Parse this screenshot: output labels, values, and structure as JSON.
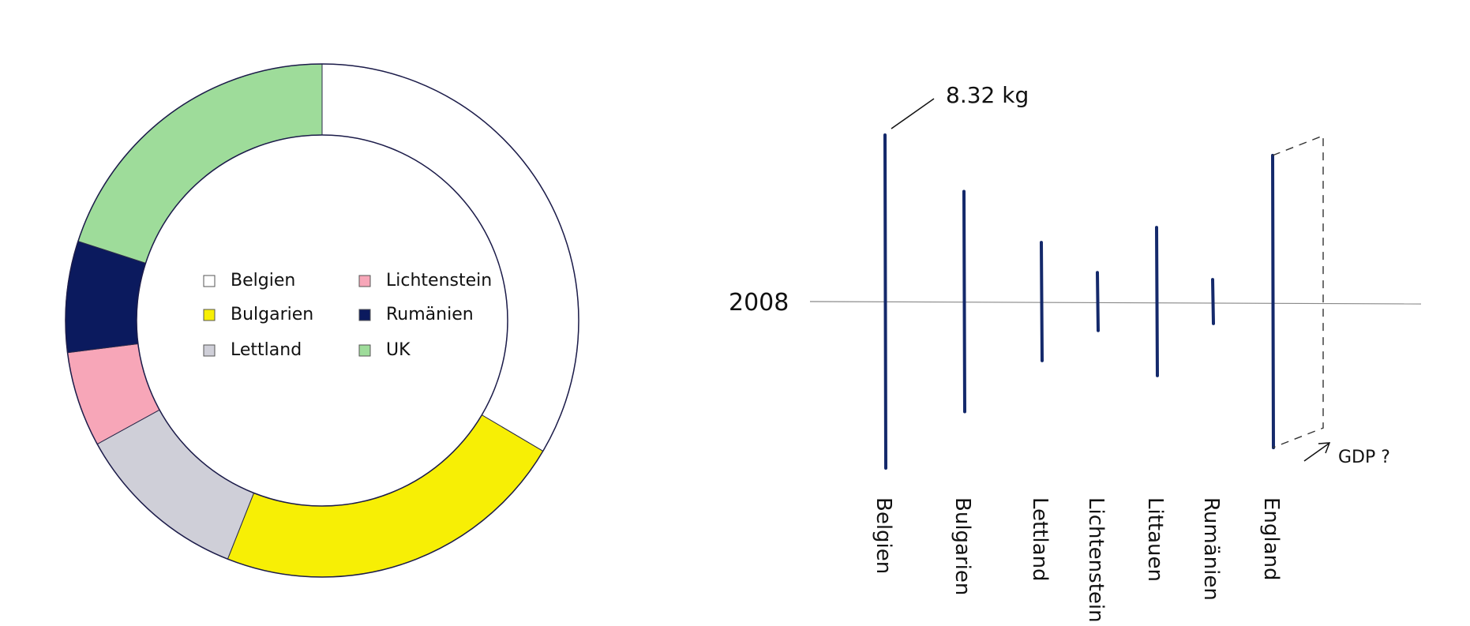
{
  "chart_data": [
    {
      "type": "pie",
      "variant": "donut",
      "hand_drawn": true,
      "slices": [
        {
          "label": "Belgien",
          "value": 33.5,
          "color": "#ffffff"
        },
        {
          "label": "Bulgarien",
          "value": 22.5,
          "color": "#f7ef05"
        },
        {
          "label": "Lettland",
          "value": 11,
          "color": "#cfcfd8"
        },
        {
          "label": "Lichtenstein",
          "value": 6,
          "color": "#f7a6b8"
        },
        {
          "label": "Rumänien",
          "value": 7,
          "color": "#0b1a5e"
        },
        {
          "label": "UK",
          "value": 20,
          "color": "#9edc9a"
        }
      ],
      "legend": {
        "placement": "center",
        "items": [
          {
            "label": "Belgien",
            "color": "#ffffff"
          },
          {
            "label": "Bulgarien",
            "color": "#f7ef05"
          },
          {
            "label": "Lettland",
            "color": "#cfcfd8"
          },
          {
            "label": "Lichtenstein",
            "color": "#f7a6b8"
          },
          {
            "label": "Rumänien",
            "color": "#0b1a5e"
          },
          {
            "label": "UK",
            "color": "#9edc9a"
          }
        ]
      }
    },
    {
      "type": "bar",
      "variant": "centered-vertical-lines",
      "hand_drawn": true,
      "baseline_label": "2008",
      "categories": [
        "Belgien",
        "Bulgarien",
        "Lettland",
        "Lichtenstein",
        "Littauen",
        "Rumänien",
        "England"
      ],
      "values": [
        8.32,
        5.5,
        2.95,
        1.45,
        3.7,
        1.1,
        7.3
      ],
      "annotation": {
        "text": "8.32 kg",
        "category": "Belgien"
      },
      "extra_annotation": {
        "text": "GDP ?",
        "category": "England"
      },
      "bar_color": "#14296b",
      "grid": false
    }
  ]
}
